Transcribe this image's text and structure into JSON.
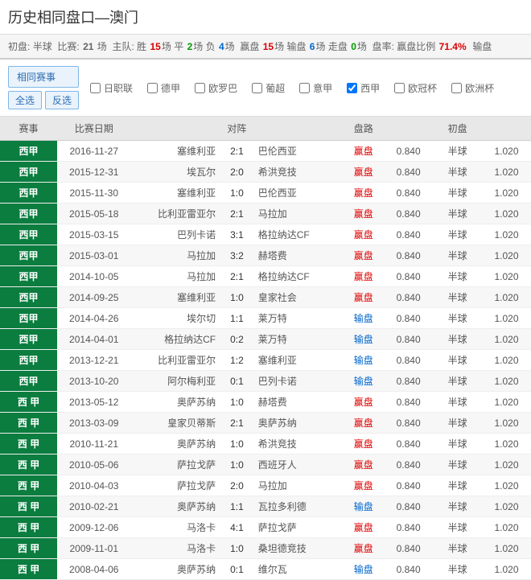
{
  "title": "历史相同盘口—澳门",
  "summary": {
    "prefix": "初盘:",
    "handicap": "半球",
    "matchesLabel": "比赛:",
    "matches": "21",
    "matchesUnit": "场",
    "homeLabel": "主队:",
    "winLabel": "胜",
    "win": "15",
    "drawLabel": "平",
    "draw": "2",
    "loseLabel": "负",
    "lose": "4",
    "winOddsLabel": "赢盘",
    "winOdds": "15",
    "loseOddsLabel": "输盘",
    "loseOdds": "6",
    "pushLabel": "走盘",
    "push": "0",
    "rateLabel": "盘率:",
    "winRateLabel": "赢盘比例",
    "winRate": "71.4%",
    "loseRateLabel": "输盘"
  },
  "buttons": {
    "same": "相同赛事",
    "all": "全选",
    "reverse": "反选"
  },
  "leagues": [
    {
      "label": "日职联",
      "checked": false
    },
    {
      "label": "德甲",
      "checked": false
    },
    {
      "label": "欧罗巴",
      "checked": false
    },
    {
      "label": "葡超",
      "checked": false
    },
    {
      "label": "意甲",
      "checked": false
    },
    {
      "label": "西甲",
      "checked": true
    },
    {
      "label": "欧冠杯",
      "checked": false
    },
    {
      "label": "欧洲杯",
      "checked": false
    }
  ],
  "headers": {
    "event": "赛事",
    "date": "比赛日期",
    "match": "对阵",
    "result": "盘路",
    "initial": "初盘"
  },
  "resultLabels": {
    "win": "赢盘",
    "lose": "输盘"
  },
  "rows": [
    {
      "event": "西甲",
      "date": "2016-11-27",
      "home": "塞维利亚",
      "score": "2:1",
      "away": "巴伦西亚",
      "result": "win",
      "odds1": "0.840",
      "handicap": "半球",
      "odds2": "1.020"
    },
    {
      "event": "西甲",
      "date": "2015-12-31",
      "home": "埃瓦尔",
      "score": "2:0",
      "away": "希洪竞技",
      "result": "win",
      "odds1": "0.840",
      "handicap": "半球",
      "odds2": "1.020"
    },
    {
      "event": "西甲",
      "date": "2015-11-30",
      "home": "塞维利亚",
      "score": "1:0",
      "away": "巴伦西亚",
      "result": "win",
      "odds1": "0.840",
      "handicap": "半球",
      "odds2": "1.020"
    },
    {
      "event": "西甲",
      "date": "2015-05-18",
      "home": "比利亚雷亚尔",
      "score": "2:1",
      "away": "马拉加",
      "result": "win",
      "odds1": "0.840",
      "handicap": "半球",
      "odds2": "1.020"
    },
    {
      "event": "西甲",
      "date": "2015-03-15",
      "home": "巴列卡诺",
      "score": "3:1",
      "away": "格拉纳达CF",
      "result": "win",
      "odds1": "0.840",
      "handicap": "半球",
      "odds2": "1.020"
    },
    {
      "event": "西甲",
      "date": "2015-03-01",
      "home": "马拉加",
      "score": "3:2",
      "away": "赫塔费",
      "result": "win",
      "odds1": "0.840",
      "handicap": "半球",
      "odds2": "1.020"
    },
    {
      "event": "西甲",
      "date": "2014-10-05",
      "home": "马拉加",
      "score": "2:1",
      "away": "格拉纳达CF",
      "result": "win",
      "odds1": "0.840",
      "handicap": "半球",
      "odds2": "1.020"
    },
    {
      "event": "西甲",
      "date": "2014-09-25",
      "home": "塞维利亚",
      "score": "1:0",
      "away": "皇家社会",
      "result": "win",
      "odds1": "0.840",
      "handicap": "半球",
      "odds2": "1.020"
    },
    {
      "event": "西甲",
      "date": "2014-04-26",
      "home": "埃尔切",
      "score": "1:1",
      "away": "莱万特",
      "result": "lose",
      "odds1": "0.840",
      "handicap": "半球",
      "odds2": "1.020"
    },
    {
      "event": "西甲",
      "date": "2014-04-01",
      "home": "格拉纳达CF",
      "score": "0:2",
      "away": "莱万特",
      "result": "lose",
      "odds1": "0.840",
      "handicap": "半球",
      "odds2": "1.020"
    },
    {
      "event": "西甲",
      "date": "2013-12-21",
      "home": "比利亚雷亚尔",
      "score": "1:2",
      "away": "塞维利亚",
      "result": "lose",
      "odds1": "0.840",
      "handicap": "半球",
      "odds2": "1.020"
    },
    {
      "event": "西甲",
      "date": "2013-10-20",
      "home": "阿尔梅利亚",
      "score": "0:1",
      "away": "巴列卡诺",
      "result": "lose",
      "odds1": "0.840",
      "handicap": "半球",
      "odds2": "1.020"
    },
    {
      "event": "西 甲",
      "date": "2013-05-12",
      "home": "奥萨苏纳",
      "score": "1:0",
      "away": "赫塔费",
      "result": "win",
      "odds1": "0.840",
      "handicap": "半球",
      "odds2": "1.020"
    },
    {
      "event": "西 甲",
      "date": "2013-03-09",
      "home": "皇家贝蒂斯",
      "score": "2:1",
      "away": "奥萨苏纳",
      "result": "win",
      "odds1": "0.840",
      "handicap": "半球",
      "odds2": "1.020"
    },
    {
      "event": "西 甲",
      "date": "2010-11-21",
      "home": "奥萨苏纳",
      "score": "1:0",
      "away": "希洪竞技",
      "result": "win",
      "odds1": "0.840",
      "handicap": "半球",
      "odds2": "1.020"
    },
    {
      "event": "西 甲",
      "date": "2010-05-06",
      "home": "萨拉戈萨",
      "score": "1:0",
      "away": "西班牙人",
      "result": "win",
      "odds1": "0.840",
      "handicap": "半球",
      "odds2": "1.020"
    },
    {
      "event": "西 甲",
      "date": "2010-04-03",
      "home": "萨拉戈萨",
      "score": "2:0",
      "away": "马拉加",
      "result": "win",
      "odds1": "0.840",
      "handicap": "半球",
      "odds2": "1.020"
    },
    {
      "event": "西 甲",
      "date": "2010-02-21",
      "home": "奥萨苏纳",
      "score": "1:1",
      "away": "瓦拉多利德",
      "result": "lose",
      "odds1": "0.840",
      "handicap": "半球",
      "odds2": "1.020"
    },
    {
      "event": "西 甲",
      "date": "2009-12-06",
      "home": "马洛卡",
      "score": "4:1",
      "away": "萨拉戈萨",
      "result": "win",
      "odds1": "0.840",
      "handicap": "半球",
      "odds2": "1.020"
    },
    {
      "event": "西 甲",
      "date": "2009-11-01",
      "home": "马洛卡",
      "score": "1:0",
      "away": "桑坦德竞技",
      "result": "win",
      "odds1": "0.840",
      "handicap": "半球",
      "odds2": "1.020"
    },
    {
      "event": "西 甲",
      "date": "2008-04-06",
      "home": "奥萨苏纳",
      "score": "0:1",
      "away": "维尔瓦",
      "result": "lose",
      "odds1": "0.840",
      "handicap": "半球",
      "odds2": "1.020"
    }
  ]
}
